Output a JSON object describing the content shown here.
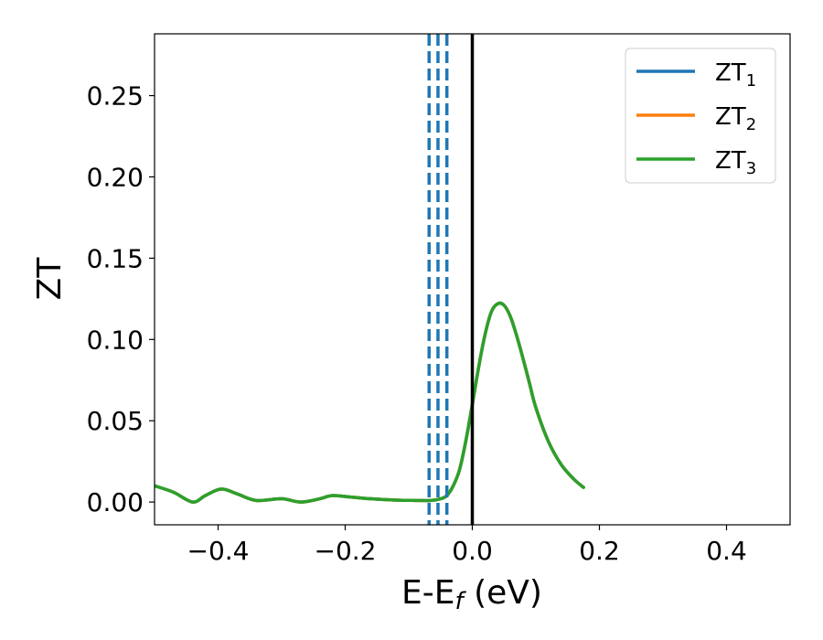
{
  "chart_data": {
    "type": "line",
    "xlabel": {
      "main": "E-E",
      "sub": "f",
      "unit": " (eV)"
    },
    "ylabel": "ZT",
    "xlim": [
      -0.5,
      0.5
    ],
    "ylim": [
      -0.014,
      0.288
    ],
    "xticks": [
      -0.4,
      -0.2,
      0.0,
      0.2,
      0.4
    ],
    "xtick_labels": [
      "−0.4",
      "−0.2",
      "0.0",
      "0.2",
      "0.4"
    ],
    "yticks": [
      0.0,
      0.05,
      0.1,
      0.15,
      0.2,
      0.25
    ],
    "ytick_labels": [
      "0.00",
      "0.05",
      "0.10",
      "0.15",
      "0.20",
      "0.25"
    ],
    "grid": false,
    "legend_position": "top-right",
    "series": [
      {
        "name": "ZT",
        "sub": "1",
        "color": "#1f77b4",
        "x": [
          -0.5,
          -0.47,
          -0.44,
          -0.42,
          -0.395,
          -0.37,
          -0.34,
          -0.3,
          -0.27,
          -0.24,
          -0.22,
          -0.19,
          -0.16,
          -0.12,
          -0.09,
          -0.065,
          -0.05,
          -0.04,
          -0.03,
          -0.02,
          -0.01,
          0.0,
          0.01,
          0.02,
          0.03,
          0.04,
          0.05,
          0.06,
          0.07,
          0.08,
          0.09,
          0.1,
          0.12,
          0.14,
          0.16,
          0.175
        ],
        "y": [
          0.01,
          0.006,
          0.0,
          0.004,
          0.008,
          0.005,
          0.001,
          0.002,
          0.0,
          0.002,
          0.004,
          0.003,
          0.002,
          0.0012,
          0.001,
          0.001,
          0.002,
          0.004,
          0.01,
          0.02,
          0.038,
          0.06,
          0.083,
          0.103,
          0.117,
          0.122,
          0.121,
          0.114,
          0.102,
          0.088,
          0.073,
          0.058,
          0.037,
          0.023,
          0.014,
          0.009
        ]
      },
      {
        "name": "ZT",
        "sub": "2",
        "color": "#ff7f0e",
        "x": [
          -0.5,
          -0.47,
          -0.44,
          -0.42,
          -0.395,
          -0.37,
          -0.34,
          -0.3,
          -0.27,
          -0.24,
          -0.22,
          -0.19,
          -0.16,
          -0.12,
          -0.09,
          -0.065,
          -0.05,
          -0.04,
          -0.03,
          -0.02,
          -0.01,
          0.0,
          0.01,
          0.02,
          0.03,
          0.04,
          0.05,
          0.06,
          0.07,
          0.08,
          0.09,
          0.1,
          0.12,
          0.14,
          0.16,
          0.175
        ],
        "y": [
          0.01,
          0.006,
          0.0,
          0.004,
          0.008,
          0.005,
          0.001,
          0.002,
          0.0,
          0.002,
          0.004,
          0.003,
          0.002,
          0.0012,
          0.001,
          0.001,
          0.002,
          0.004,
          0.01,
          0.02,
          0.038,
          0.06,
          0.083,
          0.103,
          0.117,
          0.122,
          0.121,
          0.114,
          0.102,
          0.088,
          0.073,
          0.058,
          0.037,
          0.023,
          0.014,
          0.009
        ]
      },
      {
        "name": "ZT",
        "sub": "3",
        "color": "#2ca02c",
        "x": [
          -0.5,
          -0.47,
          -0.44,
          -0.42,
          -0.395,
          -0.37,
          -0.34,
          -0.3,
          -0.27,
          -0.24,
          -0.22,
          -0.19,
          -0.16,
          -0.12,
          -0.09,
          -0.065,
          -0.05,
          -0.04,
          -0.03,
          -0.02,
          -0.01,
          0.0,
          0.01,
          0.02,
          0.03,
          0.04,
          0.05,
          0.06,
          0.07,
          0.08,
          0.09,
          0.1,
          0.12,
          0.14,
          0.16,
          0.175
        ],
        "y": [
          0.01,
          0.006,
          0.0,
          0.004,
          0.008,
          0.005,
          0.001,
          0.002,
          0.0,
          0.002,
          0.004,
          0.003,
          0.002,
          0.0012,
          0.001,
          0.001,
          0.002,
          0.004,
          0.01,
          0.02,
          0.038,
          0.06,
          0.083,
          0.103,
          0.117,
          0.122,
          0.121,
          0.114,
          0.102,
          0.088,
          0.073,
          0.058,
          0.037,
          0.023,
          0.014,
          0.009
        ]
      }
    ],
    "vlines": [
      {
        "x": -0.068,
        "style": "dashed",
        "color": "#1f77b4"
      },
      {
        "x": -0.054,
        "style": "dashed",
        "color": "#1f77b4"
      },
      {
        "x": -0.04,
        "style": "dashed",
        "color": "#1f77b4"
      },
      {
        "x": 0.0,
        "style": "solid",
        "color": "#000000"
      }
    ]
  }
}
